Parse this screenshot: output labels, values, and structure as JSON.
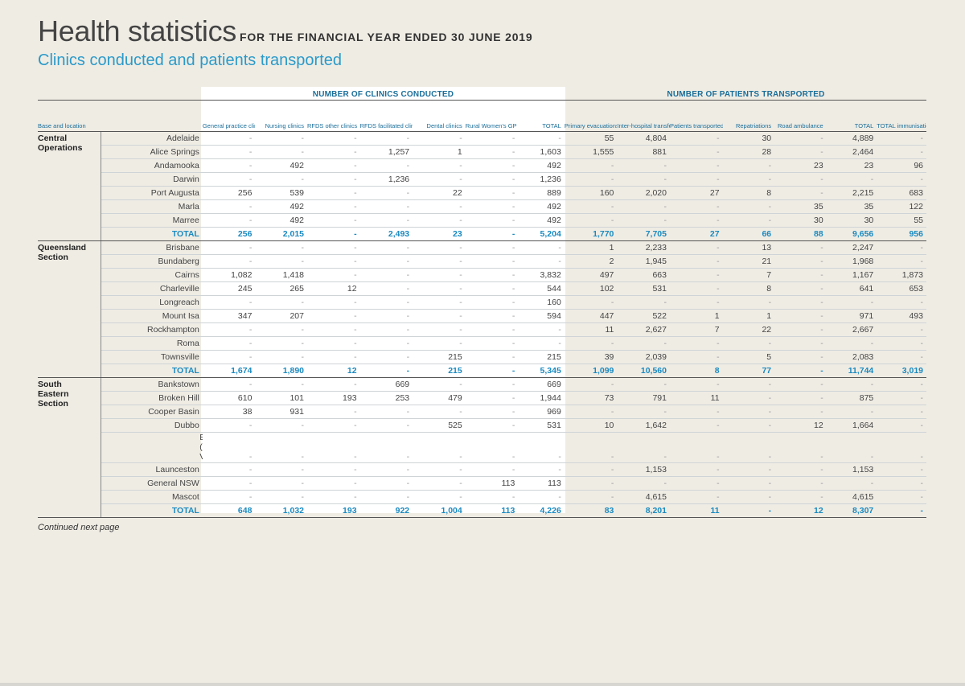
{
  "header": {
    "title": "Health statistics",
    "subtitle": "FOR THE FINANCIAL YEAR ENDED 30 JUNE 2019",
    "section_title": "Clinics conducted and patients transported"
  },
  "groups": {
    "clinics": "NUMBER OF CLINICS CONDUCTED",
    "patients": "NUMBER OF PATIENTS TRANSPORTED"
  },
  "columns": [
    "Base and location",
    "General practice clinics",
    "Nursing clinics",
    "RFDS other clinics",
    "RFDS facilitated clinics",
    "Dental clinics",
    "Rural Women's GP Program",
    "TOTAL",
    "Primary evacuations",
    "Inter-hospital transfers",
    "Patients transported from a clinic",
    "Repatriations",
    "Road ambulance",
    "TOTAL",
    "TOTAL immunisations"
  ],
  "sections": [
    {
      "name": "Central Operations",
      "rows": [
        {
          "loc": "Adelaide",
          "v": [
            "-",
            "-",
            "-",
            "-",
            "-",
            "-",
            "-",
            "55",
            "4,804",
            "-",
            "30",
            "-",
            "4,889",
            "-"
          ]
        },
        {
          "loc": "Alice Springs",
          "v": [
            "-",
            "-",
            "-",
            "1,257",
            "1",
            "-",
            "1,603",
            "1,555",
            "881",
            "-",
            "28",
            "-",
            "2,464",
            "-"
          ]
        },
        {
          "loc": "Andamooka",
          "v": [
            "-",
            "492",
            "-",
            "-",
            "-",
            "-",
            "492",
            "-",
            "-",
            "-",
            "-",
            "23",
            "23",
            "96"
          ]
        },
        {
          "loc": "Darwin",
          "v": [
            "-",
            "-",
            "-",
            "1,236",
            "-",
            "-",
            "1,236",
            "-",
            "-",
            "-",
            "-",
            "-",
            "-",
            "-"
          ]
        },
        {
          "loc": "Port Augusta",
          "v": [
            "256",
            "539",
            "-",
            "-",
            "22",
            "-",
            "889",
            "160",
            "2,020",
            "27",
            "8",
            "-",
            "2,215",
            "683"
          ]
        },
        {
          "loc": "Marla",
          "v": [
            "-",
            "492",
            "-",
            "-",
            "-",
            "-",
            "492",
            "-",
            "-",
            "-",
            "-",
            "35",
            "35",
            "122"
          ]
        },
        {
          "loc": "Marree",
          "v": [
            "-",
            "492",
            "-",
            "-",
            "-",
            "-",
            "492",
            "-",
            "-",
            "-",
            "-",
            "30",
            "30",
            "55"
          ]
        }
      ],
      "total": {
        "loc": "TOTAL",
        "v": [
          "256",
          "2,015",
          "-",
          "2,493",
          "23",
          "-",
          "5,204",
          "1,770",
          "7,705",
          "27",
          "66",
          "88",
          "9,656",
          "956"
        ]
      }
    },
    {
      "name": "Queensland Section",
      "rows": [
        {
          "loc": "Brisbane",
          "v": [
            "-",
            "-",
            "-",
            "-",
            "-",
            "-",
            "-",
            "1",
            "2,233",
            "-",
            "13",
            "-",
            "2,247",
            "-"
          ]
        },
        {
          "loc": "Bundaberg",
          "v": [
            "-",
            "-",
            "-",
            "-",
            "-",
            "-",
            "-",
            "2",
            "1,945",
            "-",
            "21",
            "-",
            "1,968",
            "-"
          ]
        },
        {
          "loc": "Cairns",
          "v": [
            "1,082",
            "1,418",
            "-",
            "-",
            "-",
            "-",
            "3,832",
            "497",
            "663",
            "-",
            "7",
            "-",
            "1,167",
            "1,873"
          ]
        },
        {
          "loc": "Charleville",
          "v": [
            "245",
            "265",
            "12",
            "-",
            "-",
            "-",
            "544",
            "102",
            "531",
            "-",
            "8",
            "-",
            "641",
            "653"
          ]
        },
        {
          "loc": "Longreach",
          "v": [
            "-",
            "-",
            "-",
            "-",
            "-",
            "-",
            "160",
            "-",
            "-",
            "-",
            "-",
            "-",
            "-",
            "-"
          ]
        },
        {
          "loc": "Mount Isa",
          "v": [
            "347",
            "207",
            "-",
            "-",
            "-",
            "-",
            "594",
            "447",
            "522",
            "1",
            "1",
            "-",
            "971",
            "493"
          ]
        },
        {
          "loc": "Rockhampton",
          "v": [
            "-",
            "-",
            "-",
            "-",
            "-",
            "-",
            "-",
            "11",
            "2,627",
            "7",
            "22",
            "-",
            "2,667",
            "-"
          ]
        },
        {
          "loc": "Roma",
          "v": [
            "-",
            "-",
            "-",
            "-",
            "-",
            "-",
            "-",
            "-",
            "-",
            "-",
            "-",
            "-",
            "-",
            "-"
          ]
        },
        {
          "loc": "Townsville",
          "v": [
            "-",
            "-",
            "-",
            "-",
            "215",
            "-",
            "215",
            "39",
            "2,039",
            "-",
            "5",
            "-",
            "2,083",
            "-"
          ]
        }
      ],
      "total": {
        "loc": "TOTAL",
        "v": [
          "1,674",
          "1,890",
          "12",
          "-",
          "215",
          "-",
          "5,345",
          "1,099",
          "10,560",
          "8",
          "77",
          "-",
          "11,744",
          "3,019"
        ]
      }
    },
    {
      "name": "South Eastern Section",
      "rows": [
        {
          "loc": "Bankstown",
          "v": [
            "-",
            "-",
            "-",
            "669",
            "-",
            "-",
            "669",
            "-",
            "-",
            "-",
            "-",
            "-",
            "-",
            "-"
          ]
        },
        {
          "loc": "Broken Hill",
          "v": [
            "610",
            "101",
            "193",
            "253",
            "479",
            "-",
            "1,944",
            "73",
            "791",
            "11",
            "-",
            "-",
            "875",
            "-"
          ]
        },
        {
          "loc": "Cooper Basin",
          "v": [
            "38",
            "931",
            "-",
            "-",
            "-",
            "-",
            "969",
            "-",
            "-",
            "-",
            "-",
            "-",
            "-",
            "-"
          ]
        },
        {
          "loc": "Dubbo",
          "v": [
            "-",
            "-",
            "-",
            "-",
            "525",
            "-",
            "531",
            "10",
            "1,642",
            "-",
            "-",
            "12",
            "1,664",
            "-"
          ]
        },
        {
          "loc": "Essendon (refer Victoria)",
          "tall": true,
          "v": [
            "-",
            "-",
            "-",
            "-",
            "-",
            "-",
            "-",
            "-",
            "-",
            "-",
            "-",
            "-",
            "-",
            "-"
          ]
        },
        {
          "loc": "Launceston",
          "v": [
            "-",
            "-",
            "-",
            "-",
            "-",
            "-",
            "-",
            "-",
            "1,153",
            "-",
            "-",
            "-",
            "1,153",
            "-"
          ]
        },
        {
          "loc": "General NSW",
          "v": [
            "-",
            "-",
            "-",
            "-",
            "-",
            "113",
            "113",
            "-",
            "-",
            "-",
            "-",
            "-",
            "-",
            "-"
          ]
        },
        {
          "loc": "Mascot",
          "v": [
            "-",
            "-",
            "-",
            "-",
            "-",
            "-",
            "-",
            "-",
            "4,615",
            "-",
            "-",
            "-",
            "4,615",
            "-"
          ]
        }
      ],
      "total": {
        "loc": "TOTAL",
        "v": [
          "648",
          "1,032",
          "193",
          "922",
          "1,004",
          "113",
          "4,226",
          "83",
          "8,201",
          "11",
          "-",
          "12",
          "8,307",
          "-"
        ]
      }
    }
  ],
  "footer": "Continued next page"
}
